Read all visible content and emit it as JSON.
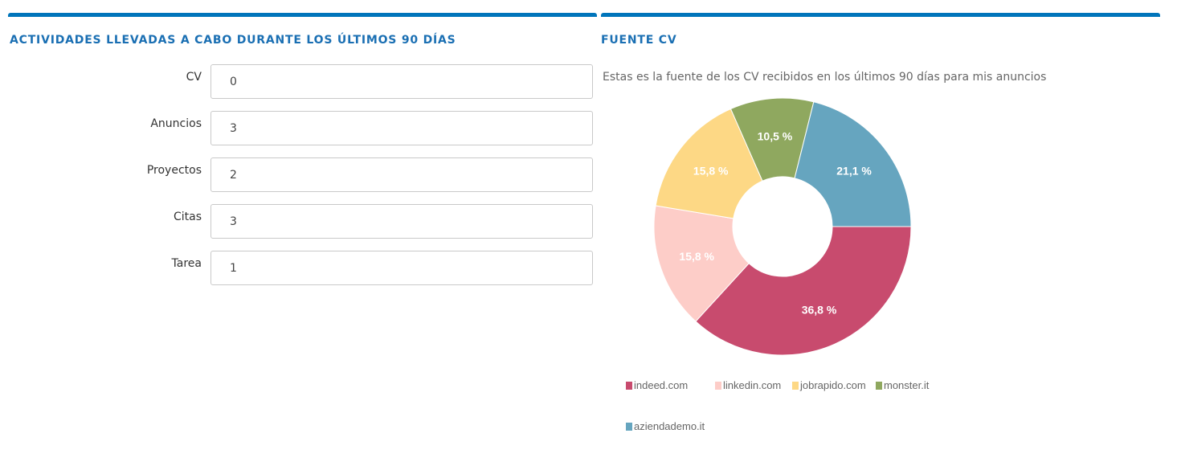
{
  "activities": {
    "title": "ACTIVIDADES LLEVADAS A CABO DURANTE LOS ÚLTIMOS 90 DÍAS",
    "fields": [
      {
        "label": "CV",
        "value": "0"
      },
      {
        "label": "Anuncios",
        "value": "3"
      },
      {
        "label": "Proyectos",
        "value": "2"
      },
      {
        "label": "Citas",
        "value": "3"
      },
      {
        "label": "Tarea",
        "value": "1"
      }
    ]
  },
  "source": {
    "title": "FUENTE CV",
    "description": "Estas es la fuente de los CV recibidos en los últimos 90 días para mis anuncios"
  },
  "chart_data": {
    "type": "pie",
    "variant": "donut",
    "title": "",
    "unit": "%",
    "legend_placement": "bottom",
    "series": [
      {
        "name": "indeed.com",
        "value": 36.8,
        "label": "36,8 %",
        "color": "#c84b6e"
      },
      {
        "name": "linkedin.com",
        "value": 15.8,
        "label": "15,8 %",
        "color": "#fdcdc8"
      },
      {
        "name": "jobrapido.com",
        "value": 15.8,
        "label": "15,8 %",
        "color": "#fdd885"
      },
      {
        "name": "monster.it",
        "value": 10.5,
        "label": "10,5 %",
        "color": "#8fa85f"
      },
      {
        "name": "aziendademo.it",
        "value": 21.1,
        "label": "21,1 %",
        "color": "#66a5bf"
      }
    ]
  }
}
